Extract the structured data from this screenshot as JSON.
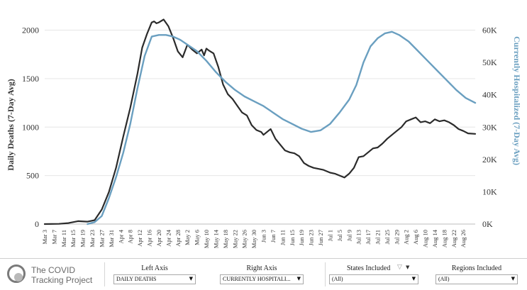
{
  "chart_data": {
    "type": "line",
    "left_axis": {
      "label": "Daily Deaths (7-Day Avg)",
      "ylim": [
        0,
        2150
      ],
      "ticks": [
        "0",
        "500",
        "1000",
        "1500",
        "2000"
      ],
      "tick_values": [
        0,
        500,
        1000,
        1500,
        2000
      ]
    },
    "right_axis": {
      "label": "Currently Hospitalized (7-Day Avg)",
      "ylim": [
        0,
        64500
      ],
      "ticks": [
        "0K",
        "10K",
        "20K",
        "30K",
        "40K",
        "50K",
        "60K"
      ],
      "tick_values": [
        0,
        10000,
        20000,
        30000,
        40000,
        50000,
        60000
      ]
    },
    "x_range": [
      "2020-03-03",
      "2020-08-31"
    ],
    "x_tick_labels": [
      "Mar 3",
      "Mar 7",
      "Mar 11",
      "Mar 15",
      "Mar 19",
      "Mar 23",
      "Mar 27",
      "Mar 31",
      "Apr 4",
      "Apr 8",
      "Apr 12",
      "Apr 16",
      "Apr 20",
      "Apr 24",
      "Apr 28",
      "May 2",
      "May 6",
      "May 10",
      "May 14",
      "May 18",
      "May 22",
      "May 26",
      "May 30",
      "Jun 3",
      "Jun 7",
      "Jun 11",
      "Jun 15",
      "Jun 19",
      "Jun 23",
      "Jun 27",
      "Jul 1",
      "Jul 5",
      "Jul 9",
      "Jul 13",
      "Jul 17",
      "Jul 21",
      "Jul 25",
      "Jul 29",
      "Aug 2",
      "Aug 6",
      "Aug 10",
      "Aug 14",
      "Aug 18",
      "Aug 22",
      "Aug 26"
    ],
    "x_tick_dates": [
      "2020-03-03",
      "2020-03-07",
      "2020-03-11",
      "2020-03-15",
      "2020-03-19",
      "2020-03-23",
      "2020-03-27",
      "2020-03-31",
      "2020-04-04",
      "2020-04-08",
      "2020-04-12",
      "2020-04-16",
      "2020-04-20",
      "2020-04-24",
      "2020-04-28",
      "2020-05-02",
      "2020-05-06",
      "2020-05-10",
      "2020-05-14",
      "2020-05-18",
      "2020-05-22",
      "2020-05-26",
      "2020-05-30",
      "2020-06-03",
      "2020-06-07",
      "2020-06-11",
      "2020-06-15",
      "2020-06-19",
      "2020-06-23",
      "2020-06-27",
      "2020-07-01",
      "2020-07-05",
      "2020-07-09",
      "2020-07-13",
      "2020-07-17",
      "2020-07-21",
      "2020-07-25",
      "2020-07-29",
      "2020-08-02",
      "2020-08-06",
      "2020-08-10",
      "2020-08-14",
      "2020-08-18",
      "2020-08-22",
      "2020-08-26"
    ],
    "series": [
      {
        "axis": "left",
        "color": "#2b2b2b",
        "points": [
          [
            "2020-03-03",
            0
          ],
          [
            "2020-03-09",
            2
          ],
          [
            "2020-03-13",
            10
          ],
          [
            "2020-03-17",
            30
          ],
          [
            "2020-03-21",
            25
          ],
          [
            "2020-03-24",
            40
          ],
          [
            "2020-03-27",
            150
          ],
          [
            "2020-03-30",
            330
          ],
          [
            "2020-04-02",
            580
          ],
          [
            "2020-04-05",
            900
          ],
          [
            "2020-04-08",
            1200
          ],
          [
            "2020-04-11",
            1550
          ],
          [
            "2020-04-13",
            1820
          ],
          [
            "2020-04-15",
            1960
          ],
          [
            "2020-04-17",
            2080
          ],
          [
            "2020-04-18",
            2090
          ],
          [
            "2020-04-19",
            2070
          ],
          [
            "2020-04-20",
            2080
          ],
          [
            "2020-04-22",
            2110
          ],
          [
            "2020-04-24",
            2040
          ],
          [
            "2020-04-26",
            1920
          ],
          [
            "2020-04-28",
            1780
          ],
          [
            "2020-04-30",
            1720
          ],
          [
            "2020-05-02",
            1850
          ],
          [
            "2020-05-04",
            1800
          ],
          [
            "2020-05-06",
            1760
          ],
          [
            "2020-05-08",
            1800
          ],
          [
            "2020-05-09",
            1740
          ],
          [
            "2020-05-10",
            1810
          ],
          [
            "2020-05-11",
            1790
          ],
          [
            "2020-05-13",
            1760
          ],
          [
            "2020-05-15",
            1620
          ],
          [
            "2020-05-17",
            1440
          ],
          [
            "2020-05-19",
            1340
          ],
          [
            "2020-05-21",
            1290
          ],
          [
            "2020-05-23",
            1220
          ],
          [
            "2020-05-25",
            1150
          ],
          [
            "2020-05-27",
            1120
          ],
          [
            "2020-05-29",
            1020
          ],
          [
            "2020-05-31",
            970
          ],
          [
            "2020-06-02",
            950
          ],
          [
            "2020-06-03",
            920
          ],
          [
            "2020-06-05",
            960
          ],
          [
            "2020-06-06",
            980
          ],
          [
            "2020-06-08",
            880
          ],
          [
            "2020-06-10",
            820
          ],
          [
            "2020-06-12",
            760
          ],
          [
            "2020-06-14",
            740
          ],
          [
            "2020-06-16",
            730
          ],
          [
            "2020-06-18",
            700
          ],
          [
            "2020-06-20",
            630
          ],
          [
            "2020-06-22",
            600
          ],
          [
            "2020-06-24",
            580
          ],
          [
            "2020-06-28",
            560
          ],
          [
            "2020-07-01",
            530
          ],
          [
            "2020-07-03",
            520
          ],
          [
            "2020-07-05",
            500
          ],
          [
            "2020-07-07",
            480
          ],
          [
            "2020-07-09",
            520
          ],
          [
            "2020-07-11",
            580
          ],
          [
            "2020-07-13",
            690
          ],
          [
            "2020-07-15",
            700
          ],
          [
            "2020-07-17",
            740
          ],
          [
            "2020-07-19",
            780
          ],
          [
            "2020-07-21",
            790
          ],
          [
            "2020-07-23",
            830
          ],
          [
            "2020-07-25",
            880
          ],
          [
            "2020-07-27",
            920
          ],
          [
            "2020-07-29",
            960
          ],
          [
            "2020-07-31",
            1000
          ],
          [
            "2020-08-02",
            1060
          ],
          [
            "2020-08-04",
            1080
          ],
          [
            "2020-08-06",
            1100
          ],
          [
            "2020-08-08",
            1050
          ],
          [
            "2020-08-10",
            1060
          ],
          [
            "2020-08-12",
            1040
          ],
          [
            "2020-08-14",
            1080
          ],
          [
            "2020-08-16",
            1060
          ],
          [
            "2020-08-18",
            1070
          ],
          [
            "2020-08-20",
            1050
          ],
          [
            "2020-08-22",
            1020
          ],
          [
            "2020-08-24",
            980
          ],
          [
            "2020-08-26",
            960
          ],
          [
            "2020-08-28",
            935
          ],
          [
            "2020-08-31",
            930
          ]
        ]
      },
      {
        "axis": "right",
        "color": "#6a9fc0",
        "points": [
          [
            "2020-03-21",
            0
          ],
          [
            "2020-03-24",
            600
          ],
          [
            "2020-03-27",
            2500
          ],
          [
            "2020-03-30",
            8000
          ],
          [
            "2020-04-02",
            14500
          ],
          [
            "2020-04-05",
            22000
          ],
          [
            "2020-04-08",
            31000
          ],
          [
            "2020-04-11",
            42000
          ],
          [
            "2020-04-14",
            52000
          ],
          [
            "2020-04-17",
            58000
          ],
          [
            "2020-04-20",
            58500
          ],
          [
            "2020-04-23",
            58500
          ],
          [
            "2020-04-26",
            58000
          ],
          [
            "2020-04-29",
            57000
          ],
          [
            "2020-05-02",
            55500
          ],
          [
            "2020-05-06",
            53500
          ],
          [
            "2020-05-10",
            50500
          ],
          [
            "2020-05-14",
            47000
          ],
          [
            "2020-05-18",
            44000
          ],
          [
            "2020-05-22",
            41500
          ],
          [
            "2020-05-26",
            39500
          ],
          [
            "2020-05-30",
            38000
          ],
          [
            "2020-06-03",
            36500
          ],
          [
            "2020-06-07",
            34500
          ],
          [
            "2020-06-11",
            32500
          ],
          [
            "2020-06-15",
            31000
          ],
          [
            "2020-06-19",
            29500
          ],
          [
            "2020-06-23",
            28500
          ],
          [
            "2020-06-27",
            29000
          ],
          [
            "2020-07-01",
            31000
          ],
          [
            "2020-07-05",
            34500
          ],
          [
            "2020-07-09",
            38500
          ],
          [
            "2020-07-12",
            43000
          ],
          [
            "2020-07-15",
            50000
          ],
          [
            "2020-07-18",
            55000
          ],
          [
            "2020-07-21",
            57500
          ],
          [
            "2020-07-24",
            59000
          ],
          [
            "2020-07-27",
            59500
          ],
          [
            "2020-07-30",
            58500
          ],
          [
            "2020-08-03",
            56500
          ],
          [
            "2020-08-07",
            53500
          ],
          [
            "2020-08-11",
            50500
          ],
          [
            "2020-08-15",
            47500
          ],
          [
            "2020-08-19",
            44500
          ],
          [
            "2020-08-23",
            41500
          ],
          [
            "2020-08-27",
            39000
          ],
          [
            "2020-08-31",
            37500
          ]
        ]
      }
    ],
    "grid": "horizontal"
  },
  "footer": {
    "logo_line1": "The COVID",
    "logo_line2": "Tracking Project",
    "left_axis_label": "Left Axis",
    "left_axis_value": "DAILY DEATHS",
    "right_axis_label": "Right Axis",
    "right_axis_value": "CURRENTLY HOSPITALI...",
    "states_label": "States Included",
    "states_value": "(All)",
    "regions_label": "Regions Included",
    "regions_value": "(All)",
    "dropdown_arrow": "▼",
    "filter_icon": "▽",
    "filter_arrow": "▼"
  }
}
